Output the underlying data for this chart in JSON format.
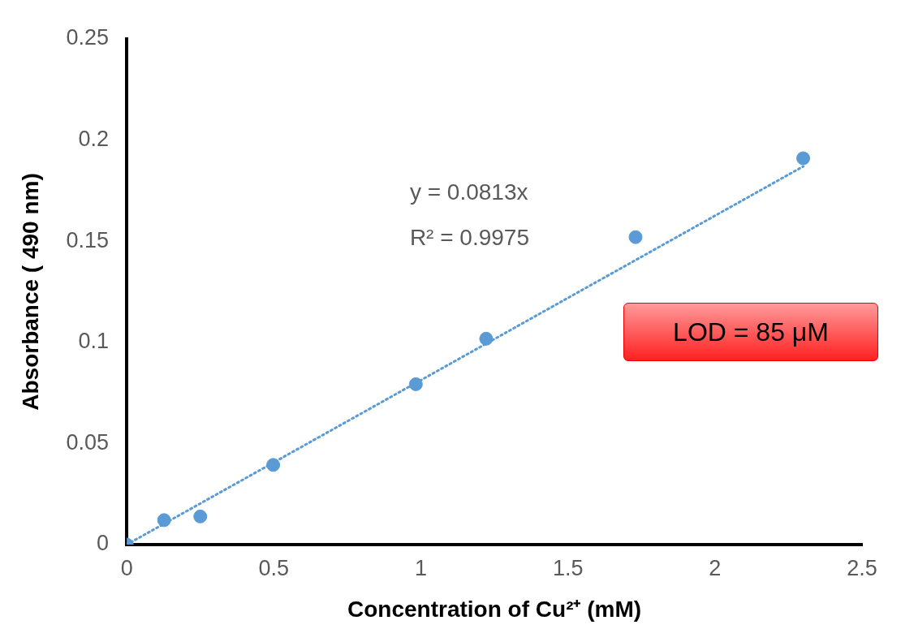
{
  "chart_data": {
    "type": "scatter",
    "xlabel": "Concentration of Cu²⁺ (mM)",
    "ylabel": "Absorbance ( 490 nm)",
    "xlim": [
      0,
      2.5
    ],
    "xticks": [
      0,
      0.5,
      1,
      1.5,
      2,
      2.5
    ],
    "ylim": [
      0,
      0.25
    ],
    "yticks": [
      0,
      0.05,
      0.1,
      0.15,
      0.2,
      0.25
    ],
    "grid": false,
    "legend": false,
    "marker": "circle",
    "series": [
      {
        "type": "scatter",
        "color": "#5b9bd5",
        "x": [
          0,
          0.127,
          0.25,
          0.498,
          0.983,
          1.222,
          1.73,
          2.3
        ],
        "values": [
          0,
          0.0121,
          0.0139,
          0.0394,
          0.0793,
          0.1018,
          0.152,
          0.191
        ]
      },
      {
        "type": "line",
        "color": "#5b9bd5",
        "marker": "none",
        "line_style": "dotted",
        "x": [
          0,
          2.3
        ],
        "values": [
          0,
          0.187
        ]
      }
    ],
    "annotations": [
      "y = 0.0813x",
      "R² = 0.9975",
      "LOD = 85  μM"
    ]
  }
}
